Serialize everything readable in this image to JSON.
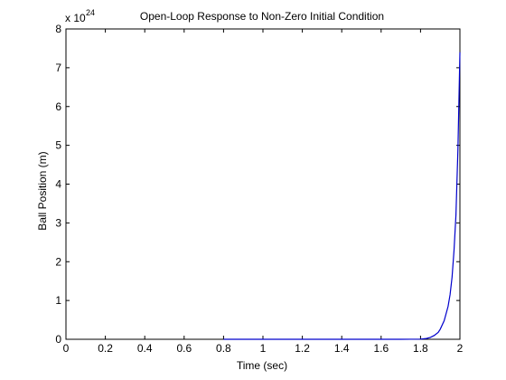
{
  "figure": {
    "background": "#ffffff",
    "axes_color": "#000000",
    "line_color": "#0000cc"
  },
  "chart_data": {
    "type": "line",
    "title": "Open-Loop Response to Non-Zero Initial Condition",
    "xlabel": "Time (sec)",
    "ylabel": "Ball Position (m)",
    "y_exponent_base": "x 10",
    "y_exponent_power": "24",
    "xlim": [
      0,
      2
    ],
    "ylim": [
      0,
      8
    ],
    "x_ticks": [
      "0",
      "0.2",
      "0.4",
      "0.6",
      "0.8",
      "1",
      "1.2",
      "1.4",
      "1.6",
      "1.8",
      "2"
    ],
    "y_ticks": [
      "0",
      "1",
      "2",
      "3",
      "4",
      "5",
      "6",
      "7",
      "8"
    ],
    "grid": false,
    "series": [
      {
        "x": [
          0.8,
          1.0,
          1.2,
          1.4,
          1.6,
          1.7,
          1.8,
          1.83,
          1.85,
          1.87,
          1.89,
          1.9,
          1.92,
          1.94,
          1.95,
          1.96,
          1.97,
          1.98,
          1.99,
          2.0
        ],
        "values": [
          0,
          0,
          0,
          0,
          0,
          0,
          0.005,
          0.02,
          0.05,
          0.1,
          0.18,
          0.26,
          0.48,
          0.85,
          1.15,
          1.6,
          2.3,
          3.2,
          4.9,
          7.4
        ]
      }
    ]
  }
}
